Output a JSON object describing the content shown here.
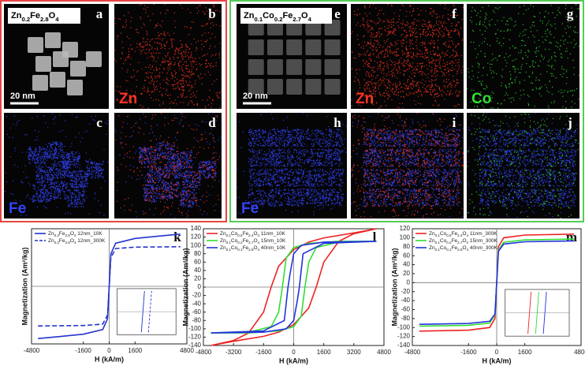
{
  "panels": [
    {
      "letter": "a",
      "formula": "Zn0.2Fe2.8O4",
      "scale_bar": "20 nm"
    },
    {
      "letter": "b",
      "element": "Zn",
      "color": "#ff3322"
    },
    {
      "letter": "c",
      "element": "Fe",
      "color": "#3344ff"
    },
    {
      "letter": "d"
    },
    {
      "letter": "e",
      "formula": "Zn0.1Co0.2Fe2.7O4",
      "scale_bar": "20 nm"
    },
    {
      "letter": "f",
      "element": "Zn",
      "color": "#ff3322"
    },
    {
      "letter": "g",
      "element": "Co",
      "color": "#33dd33"
    },
    {
      "letter": "h",
      "element": "Fe",
      "color": "#3344ff"
    },
    {
      "letter": "i"
    },
    {
      "letter": "j"
    }
  ],
  "chart_data": [
    {
      "type": "line",
      "label": "k",
      "xlabel": "H (kA/m)",
      "ylabel": "Magnetization (Am²/kg)",
      "xlim": [
        -4800,
        4800
      ],
      "xticks": [
        -4800,
        -1600,
        0,
        1600,
        4800
      ],
      "ylim": [
        -160,
        160
      ],
      "legend": "upper left",
      "series": [
        {
          "name": "Zn0.2Fe2.8O4 12nm_10K",
          "color": "#2233cc",
          "dash": false,
          "x": [
            -4400,
            -3200,
            -1600,
            -400,
            -100,
            0,
            100,
            400,
            1600,
            3200,
            4400
          ],
          "values": [
            -145,
            -140,
            -133,
            -120,
            -90,
            0,
            90,
            120,
            133,
            140,
            145
          ]
        },
        {
          "name": "Zn0.2Fe2.8O4 12nm_300K",
          "color": "#2233cc",
          "dash": true,
          "x": [
            -4400,
            -1600,
            -400,
            -100,
            0,
            100,
            400,
            1600,
            4400
          ],
          "values": [
            -110,
            -109,
            -105,
            -80,
            0,
            80,
            105,
            109,
            110
          ]
        }
      ]
    },
    {
      "type": "line",
      "label": "l",
      "xlabel": "H (kA/m)",
      "ylabel": "Magnetization (Am²/kg)",
      "xlim": [
        -4800,
        4800
      ],
      "xticks": [
        -4800,
        -3200,
        -1600,
        0,
        1600,
        3200,
        4800
      ],
      "ylim": [
        -140,
        140
      ],
      "yticks": [
        -140,
        -120,
        -100,
        -80,
        -60,
        -40,
        -20,
        0,
        20,
        40,
        60,
        80,
        100,
        120,
        140
      ],
      "legend": "upper left",
      "series": [
        {
          "name": "Zn0.1Co0.5Fe2.4O4 11nm_10K",
          "color": "#ee2222",
          "x": [
            4400,
            3200,
            1600,
            800,
            0,
            -800,
            -1200,
            -1600,
            -2400,
            -3200,
            -4400,
            -3200,
            -1600,
            -800,
            0,
            800,
            1200,
            1600,
            2400,
            3200,
            4400
          ],
          "values": [
            140,
            130,
            118,
            108,
            90,
            50,
            0,
            -60,
            -110,
            -128,
            -140,
            -130,
            -118,
            -108,
            -90,
            -50,
            0,
            60,
            110,
            128,
            140
          ]
        },
        {
          "name": "Zn0.1Co0.2Fe2.7O4 15nm_10K",
          "color": "#33dd33",
          "x": [
            4400,
            2400,
            800,
            0,
            -400,
            -600,
            -800,
            -1200,
            -2400,
            -4400,
            -2400,
            -800,
            0,
            400,
            600,
            800,
            1200,
            2400,
            4400
          ],
          "values": [
            110,
            110,
            105,
            95,
            70,
            0,
            -60,
            -95,
            -108,
            -110,
            -110,
            -105,
            -95,
            -70,
            0,
            60,
            95,
            108,
            110
          ]
        },
        {
          "name": "Zn0.1Co0.1Fe2.8O4 40nm_10K",
          "color": "#2233dd",
          "x": [
            4400,
            1600,
            400,
            0,
            -200,
            -300,
            -500,
            -1600,
            -4400,
            -1600,
            -400,
            0,
            200,
            300,
            500,
            1600,
            4400
          ],
          "values": [
            110,
            108,
            100,
            80,
            30,
            0,
            -80,
            -105,
            -110,
            -108,
            -100,
            -80,
            -30,
            0,
            80,
            105,
            110
          ]
        }
      ]
    },
    {
      "type": "line",
      "label": "m",
      "xlabel": "H (kA/m)",
      "ylabel": "Magnetization (Am²/kg)",
      "xlim": [
        -4800,
        4800
      ],
      "xticks": [
        -4800,
        -1600,
        0,
        1600,
        4800
      ],
      "ylim": [
        -140,
        120
      ],
      "yticks": [
        -140,
        -120,
        -100,
        -80,
        -60,
        -40,
        -20,
        0,
        20,
        40,
        60,
        80,
        100,
        120
      ],
      "legend": "upper left",
      "series": [
        {
          "name": "Zn0.1Co0.5Fe2.4O4 11nm_300K",
          "color": "#ee2222",
          "x": [
            -4400,
            -1600,
            -400,
            -100,
            0,
            100,
            400,
            1600,
            4400
          ],
          "values": [
            -108,
            -106,
            -100,
            -80,
            0,
            80,
            100,
            106,
            108
          ]
        },
        {
          "name": "Zn0.1Co0.2Fe2.7O4 15nm_300K",
          "color": "#33dd33",
          "x": [
            -4400,
            -1600,
            -400,
            -100,
            0,
            100,
            400,
            1600,
            4400
          ],
          "values": [
            -97,
            -95,
            -90,
            -72,
            0,
            72,
            90,
            95,
            97
          ]
        },
        {
          "name": "Zn0.1Co0.1Fe2.8O4 40nm_300K",
          "color": "#2233dd",
          "x": [
            -4400,
            -1600,
            -400,
            -100,
            0,
            100,
            400,
            1600,
            4400
          ],
          "values": [
            -93,
            -91,
            -86,
            -70,
            0,
            70,
            86,
            91,
            93
          ]
        }
      ]
    }
  ]
}
